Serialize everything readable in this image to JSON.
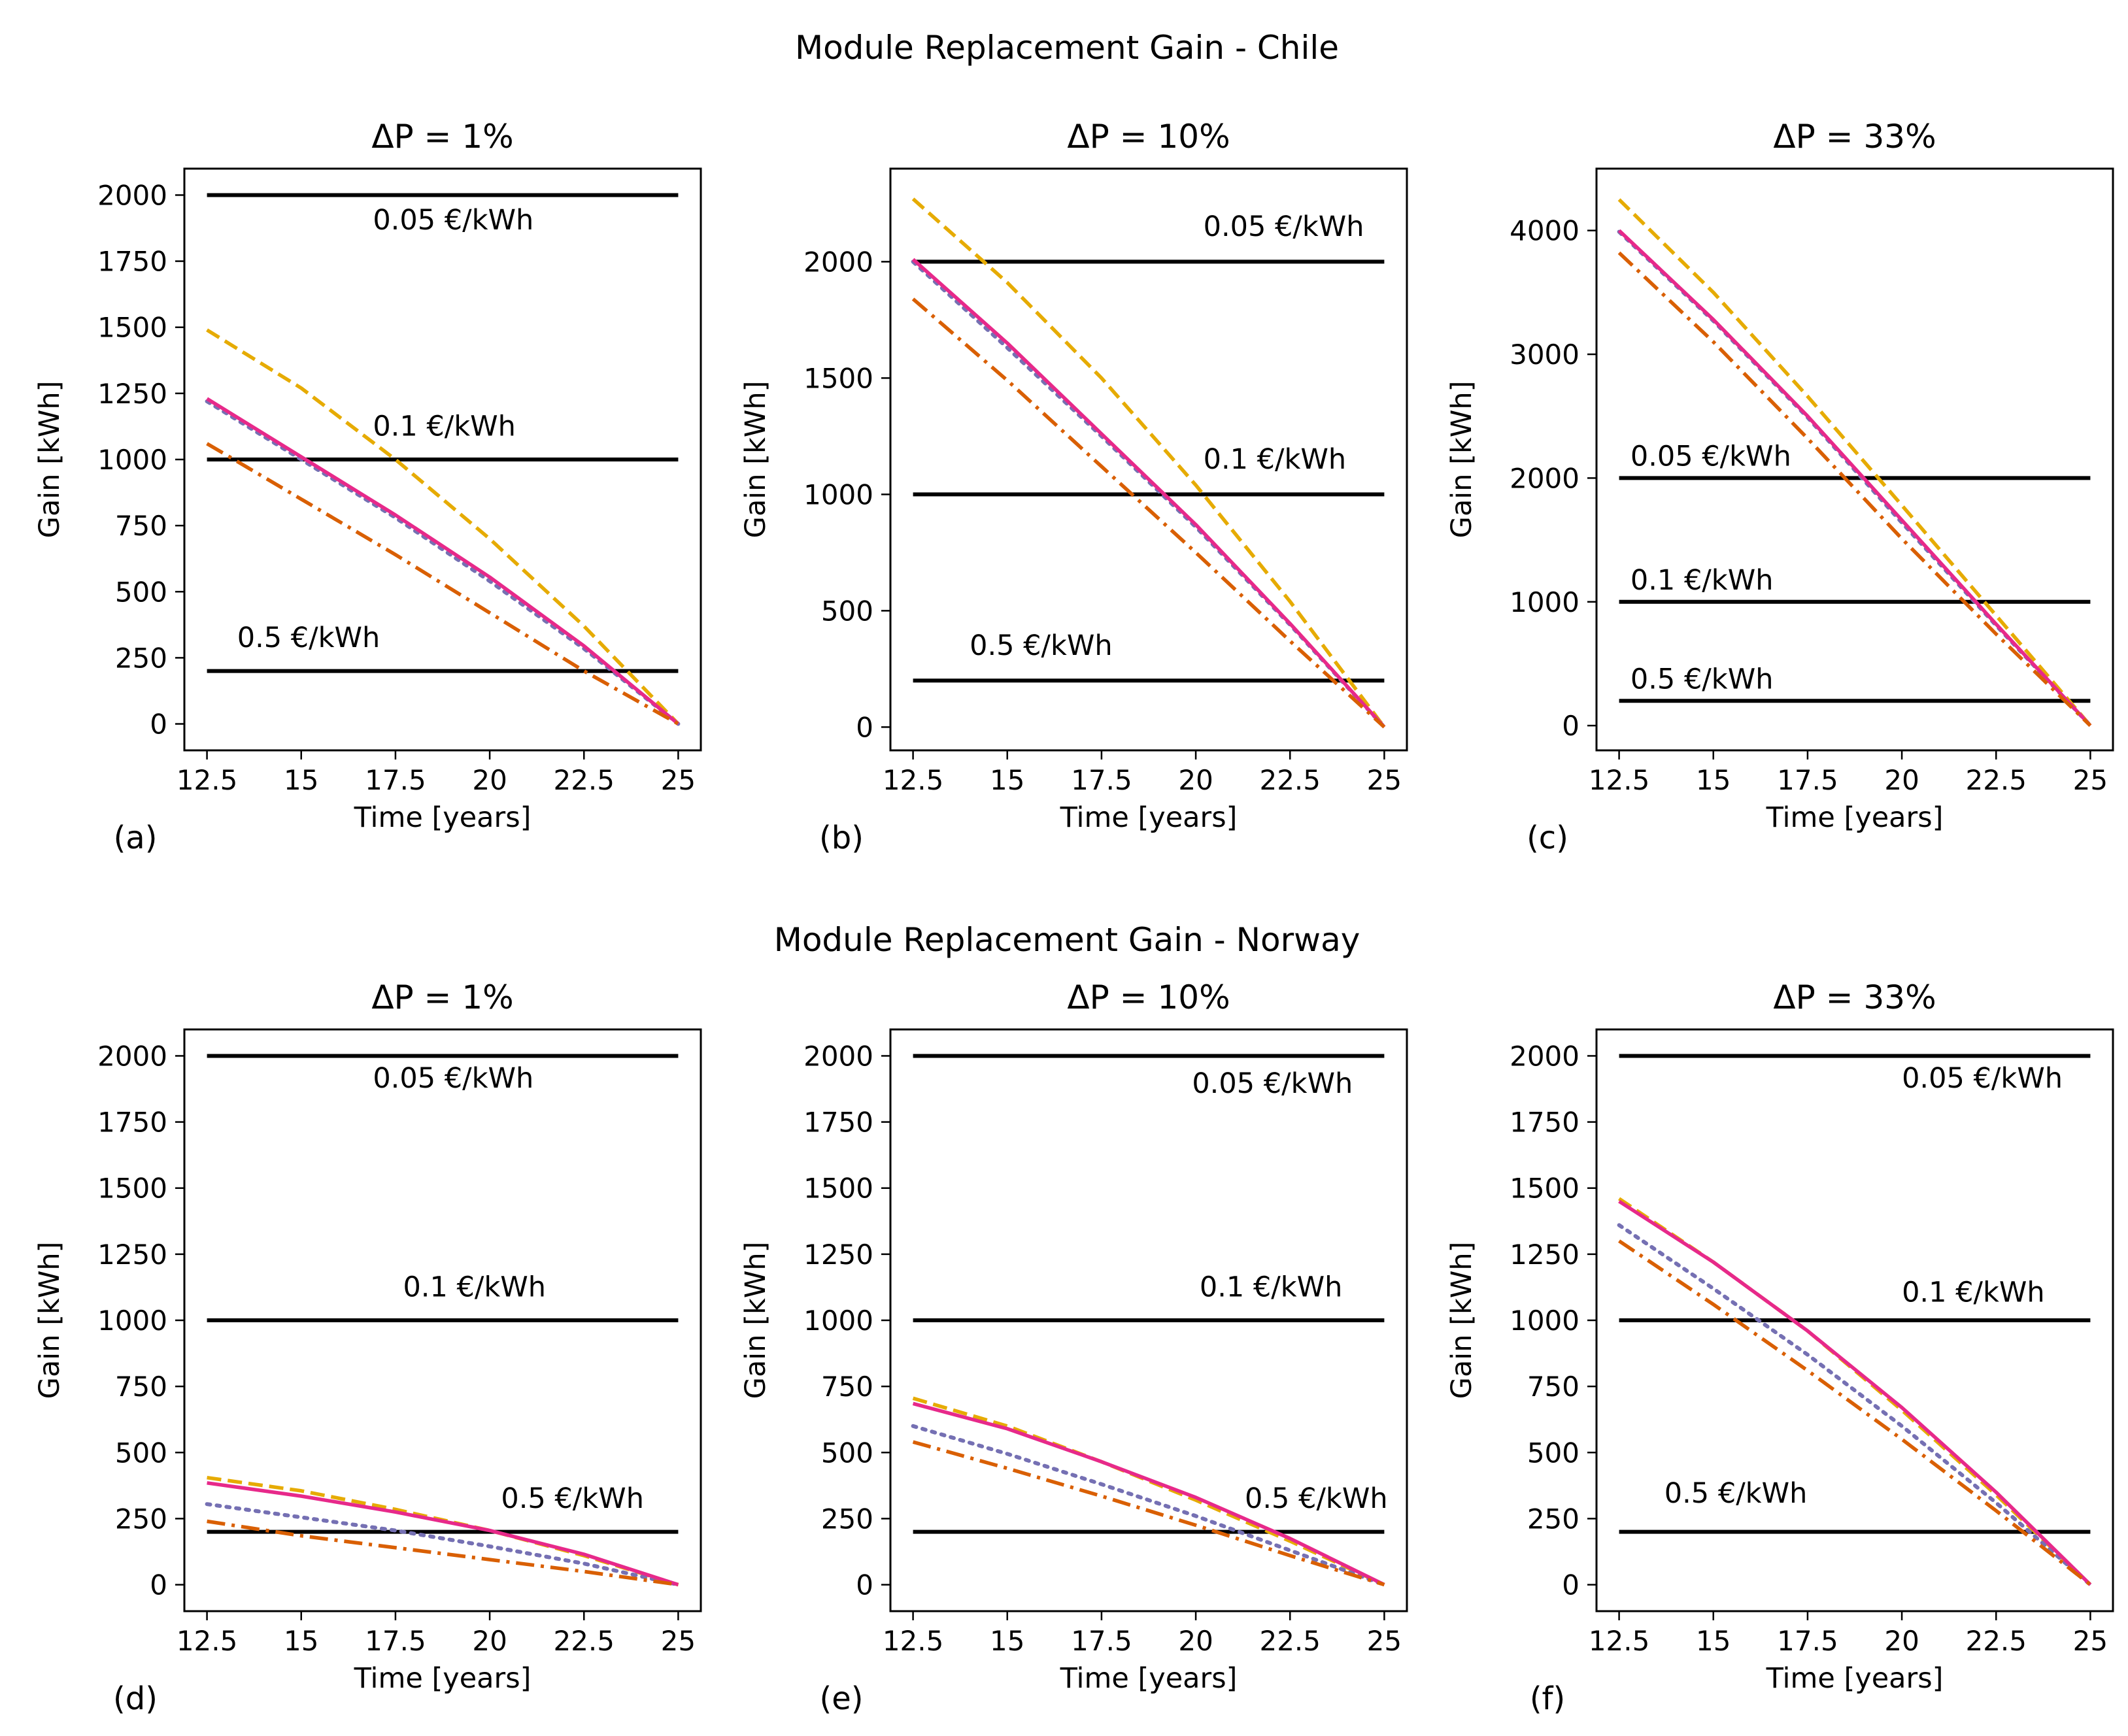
{
  "figure": {
    "suptitles": [
      "Module Replacement Gain - Chile",
      "Module Replacement Gain - Norway"
    ]
  },
  "colors": {
    "series_a": "#e6ab02",
    "series_b": "#7570b3",
    "series_c": "#e7298a",
    "series_d": "#d95f02",
    "thresholds": "#000000"
  },
  "chart_data": [
    {
      "type": "line",
      "panel": "(a)",
      "title": "ΔP = 1%",
      "xlabel": "Time [years]",
      "ylabel": "Gain [kWh]",
      "xlim": [
        11.9,
        25.6
      ],
      "ylim": [
        -100,
        2100
      ],
      "xticks": [
        12.5,
        15,
        17.5,
        20,
        22.5,
        25
      ],
      "xtick_labels": [
        "12.5",
        "15",
        "17.5",
        "20",
        "22.5",
        "25"
      ],
      "yticks": [
        0,
        250,
        500,
        750,
        1000,
        1250,
        1500,
        1750,
        2000
      ],
      "x": [
        12.5,
        15,
        17.5,
        20,
        22.5,
        25
      ],
      "series": [
        {
          "name": "series-a",
          "style": "dashed",
          "values": [
            1490,
            1270,
            1000,
            700,
            370,
            0
          ]
        },
        {
          "name": "series-b",
          "style": "dotted",
          "values": [
            1220,
            1000,
            780,
            540,
            285,
            0
          ]
        },
        {
          "name": "series-c",
          "style": "solid",
          "values": [
            1230,
            1010,
            790,
            555,
            295,
            0
          ]
        },
        {
          "name": "series-d",
          "style": "dashdot",
          "values": [
            1060,
            850,
            640,
            420,
            200,
            0
          ]
        }
      ],
      "hlines": [
        {
          "y": 2000,
          "label": "0.05 €/kWh",
          "label_x": 16.9,
          "label_y": 1870
        },
        {
          "y": 1000,
          "label": "0.1 €/kWh",
          "label_x": 16.9,
          "label_y": 1090
        },
        {
          "y": 200,
          "label": "0.5 €/kWh",
          "label_x": 13.3,
          "label_y": 290
        }
      ]
    },
    {
      "type": "line",
      "panel": "(b)",
      "title": "ΔP = 10%",
      "xlabel": "Time [years]",
      "ylabel": "Gain [kWh]",
      "xlim": [
        11.9,
        25.6
      ],
      "ylim": [
        -100,
        2400
      ],
      "xticks": [
        12.5,
        15,
        17.5,
        20,
        22.5,
        25
      ],
      "xtick_labels": [
        "12.5",
        "15",
        "17.5",
        "20",
        "22.5",
        "25"
      ],
      "yticks": [
        0,
        500,
        1000,
        1500,
        2000
      ],
      "x": [
        12.5,
        15,
        17.5,
        20,
        22.5,
        25
      ],
      "series": [
        {
          "name": "series-a",
          "style": "dashed",
          "values": [
            2270,
            1910,
            1500,
            1040,
            540,
            0
          ]
        },
        {
          "name": "series-b",
          "style": "dotted",
          "values": [
            2000,
            1630,
            1250,
            860,
            440,
            0
          ]
        },
        {
          "name": "series-c",
          "style": "solid",
          "values": [
            2010,
            1650,
            1260,
            870,
            445,
            0
          ]
        },
        {
          "name": "series-d",
          "style": "dashdot",
          "values": [
            1840,
            1490,
            1120,
            750,
            370,
            0
          ]
        }
      ],
      "hlines": [
        {
          "y": 2000,
          "label": "0.05 €/kWh",
          "label_x": 20.2,
          "label_y": 2110
        },
        {
          "y": 1000,
          "label": "0.1 €/kWh",
          "label_x": 20.2,
          "label_y": 1110
        },
        {
          "y": 200,
          "label": "0.5 €/kWh",
          "label_x": 14.0,
          "label_y": 310
        }
      ]
    },
    {
      "type": "line",
      "panel": "(c)",
      "title": "ΔP = 33%",
      "xlabel": "Time [years]",
      "ylabel": "Gain [kWh]",
      "xlim": [
        11.9,
        25.6
      ],
      "ylim": [
        -200,
        4500
      ],
      "xticks": [
        12.5,
        15,
        17.5,
        20,
        22.5,
        25
      ],
      "xtick_labels": [
        "12.5",
        "15",
        "17.5",
        "20",
        "22.5",
        "25"
      ],
      "yticks": [
        0,
        1000,
        2000,
        3000,
        4000
      ],
      "x": [
        12.5,
        15,
        17.5,
        20,
        22.5,
        25
      ],
      "series": [
        {
          "name": "series-a",
          "style": "dashed",
          "values": [
            4250,
            3500,
            2660,
            1780,
            890,
            0
          ]
        },
        {
          "name": "series-b",
          "style": "dotted",
          "values": [
            3990,
            3270,
            2490,
            1640,
            810,
            0
          ]
        },
        {
          "name": "series-c",
          "style": "solid",
          "values": [
            4000,
            3280,
            2500,
            1660,
            820,
            0
          ]
        },
        {
          "name": "series-d",
          "style": "dashdot",
          "values": [
            3820,
            3100,
            2320,
            1510,
            740,
            0
          ]
        }
      ],
      "hlines": [
        {
          "y": 2000,
          "label": "0.05 €/kWh",
          "label_x": 12.8,
          "label_y": 2100
        },
        {
          "y": 1000,
          "label": "0.1 €/kWh",
          "label_x": 12.8,
          "label_y": 1100
        },
        {
          "y": 200,
          "label": "0.5 €/kWh",
          "label_x": 12.8,
          "label_y": 300
        }
      ]
    },
    {
      "type": "line",
      "panel": "(d)",
      "title": "ΔP = 1%",
      "xlabel": "Time [years]",
      "ylabel": "Gain [kWh]",
      "xlim": [
        11.9,
        25.6
      ],
      "ylim": [
        -100,
        2100
      ],
      "xticks": [
        12.5,
        15,
        17.5,
        20,
        22.5,
        25
      ],
      "xtick_labels": [
        "12.5",
        "15",
        "17.5",
        "20",
        "22.5",
        "25"
      ],
      "yticks": [
        0,
        250,
        500,
        750,
        1000,
        1250,
        1500,
        1750,
        2000
      ],
      "x": [
        12.5,
        15,
        17.5,
        20,
        22.5,
        25
      ],
      "series": [
        {
          "name": "series-a",
          "style": "dashed",
          "values": [
            405,
            355,
            285,
            205,
            110,
            0
          ]
        },
        {
          "name": "series-b",
          "style": "dotted",
          "values": [
            305,
            255,
            205,
            145,
            80,
            0
          ]
        },
        {
          "name": "series-c",
          "style": "solid",
          "values": [
            385,
            335,
            275,
            205,
            115,
            0
          ]
        },
        {
          "name": "series-d",
          "style": "dashdot",
          "values": [
            240,
            185,
            140,
            95,
            50,
            0
          ]
        }
      ],
      "hlines": [
        {
          "y": 2000,
          "label": "0.05 €/kWh",
          "label_x": 16.9,
          "label_y": 1880
        },
        {
          "y": 1000,
          "label": "0.1 €/kWh",
          "label_x": 17.7,
          "label_y": 1090
        },
        {
          "y": 200,
          "label": "0.5 €/kWh",
          "label_x": 20.3,
          "label_y": 290
        }
      ]
    },
    {
      "type": "line",
      "panel": "(e)",
      "title": "ΔP = 10%",
      "xlabel": "Time [years]",
      "ylabel": "Gain [kWh]",
      "xlim": [
        11.9,
        25.6
      ],
      "ylim": [
        -100,
        2100
      ],
      "xticks": [
        12.5,
        15,
        17.5,
        20,
        22.5,
        25
      ],
      "xtick_labels": [
        "12.5",
        "15",
        "17.5",
        "20",
        "22.5",
        "25"
      ],
      "yticks": [
        0,
        250,
        500,
        750,
        1000,
        1250,
        1500,
        1750,
        2000
      ],
      "x": [
        12.5,
        15,
        17.5,
        20,
        22.5,
        25
      ],
      "series": [
        {
          "name": "series-a",
          "style": "dashed",
          "values": [
            705,
            600,
            465,
            320,
            165,
            0
          ]
        },
        {
          "name": "series-b",
          "style": "dotted",
          "values": [
            600,
            495,
            380,
            260,
            130,
            0
          ]
        },
        {
          "name": "series-c",
          "style": "solid",
          "values": [
            685,
            590,
            465,
            330,
            175,
            0
          ]
        },
        {
          "name": "series-d",
          "style": "dashdot",
          "values": [
            540,
            440,
            335,
            225,
            110,
            0
          ]
        }
      ],
      "hlines": [
        {
          "y": 2000,
          "label": "0.05 €/kWh",
          "label_x": 19.9,
          "label_y": 1860
        },
        {
          "y": 1000,
          "label": "0.1 €/kWh",
          "label_x": 20.1,
          "label_y": 1090
        },
        {
          "y": 200,
          "label": "0.5 €/kWh",
          "label_x": 21.3,
          "label_y": 290
        }
      ]
    },
    {
      "type": "line",
      "panel": "(f)",
      "title": "ΔP = 33%",
      "xlabel": "Time [years]",
      "ylabel": "Gain [kWh]",
      "xlim": [
        11.9,
        25.6
      ],
      "ylim": [
        -100,
        2100
      ],
      "xticks": [
        12.5,
        15,
        17.5,
        20,
        22.5,
        25
      ],
      "xtick_labels": [
        "12.5",
        "15",
        "17.5",
        "20",
        "22.5",
        "25"
      ],
      "yticks": [
        0,
        250,
        500,
        750,
        1000,
        1250,
        1500,
        1750,
        2000
      ],
      "x": [
        12.5,
        15,
        17.5,
        20,
        22.5,
        25
      ],
      "series": [
        {
          "name": "series-a",
          "style": "dashed",
          "values": [
            1460,
            1220,
            960,
            660,
            340,
            0
          ]
        },
        {
          "name": "series-b",
          "style": "dotted",
          "values": [
            1360,
            1120,
            870,
            600,
            310,
            0
          ]
        },
        {
          "name": "series-c",
          "style": "solid",
          "values": [
            1450,
            1220,
            960,
            670,
            350,
            0
          ]
        },
        {
          "name": "series-d",
          "style": "dashdot",
          "values": [
            1300,
            1060,
            810,
            550,
            280,
            0
          ]
        }
      ],
      "hlines": [
        {
          "y": 2000,
          "label": "0.05 €/kWh",
          "label_x": 20.0,
          "label_y": 1880
        },
        {
          "y": 1000,
          "label": "0.1 €/kWh",
          "label_x": 20.0,
          "label_y": 1070
        },
        {
          "y": 200,
          "label": "0.5 €/kWh",
          "label_x": 13.7,
          "label_y": 310
        }
      ]
    }
  ]
}
